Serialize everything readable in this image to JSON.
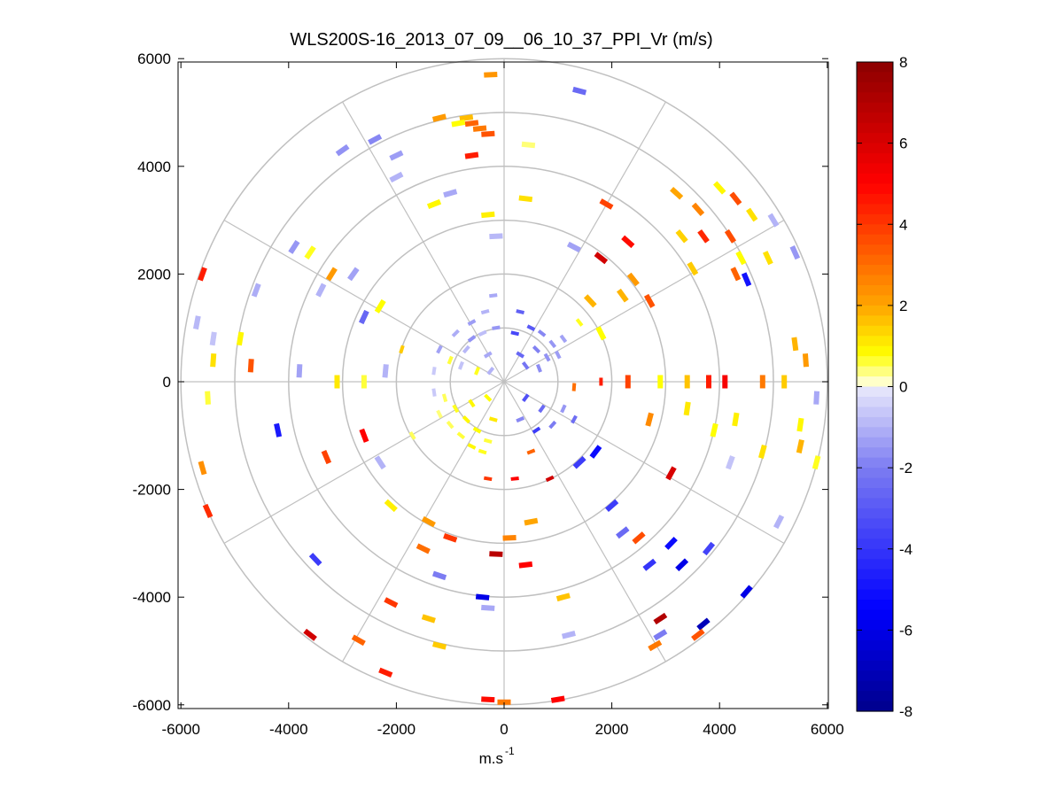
{
  "chart_data": {
    "type": "heatmap",
    "subtype": "polar-ppi",
    "title": "WLS200S-16_2013_07_09__06_10_37_PPI_Vr (m/s)",
    "xlabel_base": "m.s",
    "xlabel_exp": "-1",
    "ylabel": "",
    "xlim": [
      -6000,
      6000
    ],
    "ylim": [
      -6000,
      6000
    ],
    "xticks": [
      -6000,
      -4000,
      -2000,
      0,
      2000,
      4000,
      6000
    ],
    "yticks": [
      -6000,
      -4000,
      -2000,
      0,
      2000,
      4000,
      6000
    ],
    "xtick_labels": [
      "-6000",
      "-4000",
      "-2000",
      "0",
      "2000",
      "4000",
      "6000"
    ],
    "ytick_labels": [
      "6000",
      "4000",
      "2000",
      "0",
      "-2000",
      "-4000",
      "-6000"
    ],
    "range_rings": [
      1000,
      2000,
      3000,
      4000,
      5000,
      6000
    ],
    "spokes_deg": [
      0,
      30,
      60,
      90,
      120,
      150,
      180,
      210,
      240,
      270,
      300,
      330
    ],
    "colorbar": {
      "min": -8,
      "max": 8,
      "ticks": [
        8,
        6,
        4,
        2,
        0,
        -2,
        -4,
        -6,
        -8
      ],
      "tick_labels": [
        "8",
        "6",
        "4",
        "2",
        "0",
        "-2",
        "-4",
        "-6",
        "-8"
      ],
      "stops": [
        {
          "v": -8,
          "color": "#00008b"
        },
        {
          "v": -5.5,
          "color": "#0000ff"
        },
        {
          "v": -2,
          "color": "#7c7cf2"
        },
        {
          "v": -0.1,
          "color": "#e4e4fb"
        },
        {
          "v": 0.1,
          "color": "#ffffd0"
        },
        {
          "v": 0.8,
          "color": "#ffff00"
        },
        {
          "v": 2,
          "color": "#ffa500"
        },
        {
          "v": 5,
          "color": "#ff0000"
        },
        {
          "v": 8,
          "color": "#8b0000"
        }
      ]
    },
    "cells": [
      {
        "x": -200,
        "y": 1600,
        "v": -1.2
      },
      {
        "x": -350,
        "y": 1300,
        "v": -1.0
      },
      {
        "x": -600,
        "y": 1100,
        "v": -1.4
      },
      {
        "x": -900,
        "y": 900,
        "v": -1.1
      },
      {
        "x": -400,
        "y": 900,
        "v": -0.8
      },
      {
        "x": -150,
        "y": 1000,
        "v": -1.5
      },
      {
        "x": -700,
        "y": 600,
        "v": -0.9
      },
      {
        "x": -300,
        "y": 500,
        "v": -1.2
      },
      {
        "x": -1000,
        "y": 400,
        "v": 0.6
      },
      {
        "x": -800,
        "y": 300,
        "v": -0.7
      },
      {
        "x": -500,
        "y": 200,
        "v": 0.7
      },
      {
        "x": -1200,
        "y": 600,
        "v": -1.3
      },
      {
        "x": -1300,
        "y": 200,
        "v": -0.6
      },
      {
        "x": -250,
        "y": 200,
        "v": -1.0
      },
      {
        "x": -600,
        "y": 800,
        "v": -1.6
      },
      {
        "x": 300,
        "y": 1300,
        "v": -2.8
      },
      {
        "x": 500,
        "y": 1000,
        "v": -3.0
      },
      {
        "x": 700,
        "y": 900,
        "v": -1.8
      },
      {
        "x": 900,
        "y": 700,
        "v": -1.5
      },
      {
        "x": 1100,
        "y": 800,
        "v": -1.3
      },
      {
        "x": 600,
        "y": 600,
        "v": -1.9
      },
      {
        "x": 300,
        "y": 500,
        "v": -2.6
      },
      {
        "x": 800,
        "y": 450,
        "v": -1.6
      },
      {
        "x": 1000,
        "y": 500,
        "v": -1.4
      },
      {
        "x": 400,
        "y": 300,
        "v": -2.2
      },
      {
        "x": 650,
        "y": 250,
        "v": -1.7
      },
      {
        "x": 200,
        "y": 900,
        "v": -3.5
      },
      {
        "x": 1400,
        "y": 1100,
        "v": 0.7
      },
      {
        "x": 1600,
        "y": 1500,
        "v": 1.8
      },
      {
        "x": -900,
        "y": -500,
        "v": 0.7
      },
      {
        "x": -700,
        "y": -700,
        "v": 0.9
      },
      {
        "x": -500,
        "y": -900,
        "v": 0.8
      },
      {
        "x": -300,
        "y": -1100,
        "v": 0.6
      },
      {
        "x": -1100,
        "y": -300,
        "v": 0.5
      },
      {
        "x": -600,
        "y": -400,
        "v": 0.9
      },
      {
        "x": -200,
        "y": -700,
        "v": 1.1
      },
      {
        "x": -400,
        "y": -1300,
        "v": 0.7
      },
      {
        "x": -800,
        "y": -1000,
        "v": 0.6
      },
      {
        "x": -1000,
        "y": -800,
        "v": 0.5
      },
      {
        "x": -300,
        "y": -300,
        "v": 0.8
      },
      {
        "x": -1300,
        "y": -200,
        "v": -0.6
      },
      {
        "x": -1200,
        "y": -600,
        "v": 0.4
      },
      {
        "x": -600,
        "y": -1200,
        "v": 0.9
      },
      {
        "x": 400,
        "y": -300,
        "v": -3.2
      },
      {
        "x": 700,
        "y": -500,
        "v": -2.5
      },
      {
        "x": 900,
        "y": -800,
        "v": -2.0
      },
      {
        "x": 600,
        "y": -900,
        "v": -3.8
      },
      {
        "x": 300,
        "y": -700,
        "v": -1.8
      },
      {
        "x": 1100,
        "y": -500,
        "v": -1.5
      },
      {
        "x": 1300,
        "y": -700,
        "v": -2.4
      },
      {
        "x": 500,
        "y": -1300,
        "v": 3.2
      },
      {
        "x": 200,
        "y": -1800,
        "v": 5.0
      },
      {
        "x": -300,
        "y": -1800,
        "v": 4.0
      },
      {
        "x": 850,
        "y": -1800,
        "v": 6.2
      },
      {
        "x": 1400,
        "y": -1500,
        "v": -3.8
      },
      {
        "x": 1700,
        "y": -1300,
        "v": -5.2
      },
      {
        "x": 1800,
        "y": 0,
        "v": 4.5
      },
      {
        "x": 1300,
        "y": -100,
        "v": 3.0
      },
      {
        "x": -1700,
        "y": -1000,
        "v": 0.5
      },
      {
        "x": -250,
        "y": 5700,
        "v": 2.3
      },
      {
        "x": -600,
        "y": 4800,
        "v": 3.2
      },
      {
        "x": -450,
        "y": 4700,
        "v": 2.8
      },
      {
        "x": -300,
        "y": 4600,
        "v": 3.5
      },
      {
        "x": -700,
        "y": 4900,
        "v": 1.7
      },
      {
        "x": -1200,
        "y": 4900,
        "v": 2.2
      },
      {
        "x": -850,
        "y": 4800,
        "v": 0.8
      },
      {
        "x": -600,
        "y": 4200,
        "v": 4.5
      },
      {
        "x": 450,
        "y": 4400,
        "v": 0.4
      },
      {
        "x": 1400,
        "y": 5400,
        "v": -2.5
      },
      {
        "x": -1000,
        "y": 3500,
        "v": -1.2
      },
      {
        "x": -1300,
        "y": 3300,
        "v": 0.9
      },
      {
        "x": -2000,
        "y": 3800,
        "v": -1.0
      },
      {
        "x": -2400,
        "y": 4500,
        "v": -1.8
      },
      {
        "x": -3000,
        "y": 4300,
        "v": -1.6
      },
      {
        "x": -2000,
        "y": 4200,
        "v": -1.4
      },
      {
        "x": -300,
        "y": 3100,
        "v": 1.0
      },
      {
        "x": 400,
        "y": 3400,
        "v": 1.2
      },
      {
        "x": -150,
        "y": 2700,
        "v": -0.9
      },
      {
        "x": -3900,
        "y": 2500,
        "v": -1.5
      },
      {
        "x": -3600,
        "y": 2400,
        "v": 0.7
      },
      {
        "x": -3200,
        "y": 2000,
        "v": 2.2
      },
      {
        "x": -2800,
        "y": 2000,
        "v": -1.3
      },
      {
        "x": -3400,
        "y": 1700,
        "v": -1.0
      },
      {
        "x": -2300,
        "y": 1400,
        "v": 0.8
      },
      {
        "x": -2600,
        "y": 1200,
        "v": -2.6
      },
      {
        "x": -4600,
        "y": 1700,
        "v": -1.1
      },
      {
        "x": -5600,
        "y": 2000,
        "v": 4.5
      },
      {
        "x": -5700,
        "y": 1100,
        "v": -0.9
      },
      {
        "x": -5400,
        "y": 800,
        "v": -0.7
      },
      {
        "x": -4900,
        "y": 800,
        "v": 0.9
      },
      {
        "x": -4700,
        "y": 300,
        "v": 3.5
      },
      {
        "x": -5400,
        "y": 400,
        "v": 1.2
      },
      {
        "x": -3100,
        "y": 0,
        "v": 1.1
      },
      {
        "x": -3800,
        "y": 200,
        "v": -1.3
      },
      {
        "x": -2600,
        "y": 0,
        "v": 0.6
      },
      {
        "x": -2200,
        "y": 200,
        "v": -1.0
      },
      {
        "x": -1900,
        "y": 600,
        "v": 1.5
      },
      {
        "x": -5500,
        "y": -300,
        "v": 0.6
      },
      {
        "x": -4200,
        "y": -900,
        "v": -4.8
      },
      {
        "x": -3300,
        "y": -1400,
        "v": 3.8
      },
      {
        "x": -2600,
        "y": -1000,
        "v": 5.0
      },
      {
        "x": -2300,
        "y": -1500,
        "v": -1.0
      },
      {
        "x": -5600,
        "y": -1600,
        "v": 2.4
      },
      {
        "x": -5500,
        "y": -2400,
        "v": 4.2
      },
      {
        "x": -3500,
        "y": -3300,
        "v": -3.8
      },
      {
        "x": -2100,
        "y": -2300,
        "v": 1.0
      },
      {
        "x": -1400,
        "y": -2600,
        "v": 2.2
      },
      {
        "x": -1200,
        "y": -3600,
        "v": -2.0
      },
      {
        "x": -2100,
        "y": -4100,
        "v": 4.0
      },
      {
        "x": -1400,
        "y": -4400,
        "v": 1.6
      },
      {
        "x": -3600,
        "y": -4700,
        "v": 6.2
      },
      {
        "x": -2700,
        "y": -4800,
        "v": 3.2
      },
      {
        "x": -2200,
        "y": -5400,
        "v": 4.5
      },
      {
        "x": -1200,
        "y": -4900,
        "v": 1.5
      },
      {
        "x": -400,
        "y": -4000,
        "v": -6.0
      },
      {
        "x": -300,
        "y": -4200,
        "v": -1.2
      },
      {
        "x": -300,
        "y": -5900,
        "v": 4.8
      },
      {
        "x": 0,
        "y": -5950,
        "v": 2.8
      },
      {
        "x": 1000,
        "y": -5900,
        "v": 5.0
      },
      {
        "x": 100,
        "y": -2900,
        "v": 2.6
      },
      {
        "x": -150,
        "y": -3200,
        "v": 6.8
      },
      {
        "x": 400,
        "y": -3400,
        "v": 5.0
      },
      {
        "x": -1000,
        "y": -2900,
        "v": 4.0
      },
      {
        "x": -1500,
        "y": -3100,
        "v": 3.0
      },
      {
        "x": 500,
        "y": -2600,
        "v": 2.0
      },
      {
        "x": 1100,
        "y": -4000,
        "v": 1.6
      },
      {
        "x": 1200,
        "y": -4700,
        "v": -1.0
      },
      {
        "x": 4000,
        "y": 3600,
        "v": 0.9
      },
      {
        "x": 4300,
        "y": 3400,
        "v": 3.6
      },
      {
        "x": 4600,
        "y": 3100,
        "v": 1.2
      },
      {
        "x": 5000,
        "y": 3000,
        "v": -1.0
      },
      {
        "x": 5400,
        "y": 2400,
        "v": -1.5
      },
      {
        "x": 4900,
        "y": 2300,
        "v": 1.2
      },
      {
        "x": 3600,
        "y": 3200,
        "v": 2.6
      },
      {
        "x": 3300,
        "y": 2700,
        "v": 1.4
      },
      {
        "x": 3700,
        "y": 2700,
        "v": 4.3
      },
      {
        "x": 4200,
        "y": 2700,
        "v": 3.6
      },
      {
        "x": 4400,
        "y": 2300,
        "v": 0.8
      },
      {
        "x": 3200,
        "y": 3500,
        "v": 2.0
      },
      {
        "x": 2400,
        "y": 1900,
        "v": 2.2
      },
      {
        "x": 2700,
        "y": 1500,
        "v": 3.5
      },
      {
        "x": 2200,
        "y": 1600,
        "v": 1.8
      },
      {
        "x": 1800,
        "y": 2300,
        "v": 6.2
      },
      {
        "x": 2300,
        "y": 2600,
        "v": 4.8
      },
      {
        "x": 1900,
        "y": 3300,
        "v": 3.8
      },
      {
        "x": 4300,
        "y": 2000,
        "v": 3.2
      },
      {
        "x": 4500,
        "y": 1900,
        "v": -5.0
      },
      {
        "x": 3500,
        "y": 2100,
        "v": 1.5
      },
      {
        "x": 1300,
        "y": 2500,
        "v": -1.3
      },
      {
        "x": 1800,
        "y": 900,
        "v": 0.8
      },
      {
        "x": 5400,
        "y": 700,
        "v": 1.8
      },
      {
        "x": 5600,
        "y": 400,
        "v": 2.2
      },
      {
        "x": 5200,
        "y": 0,
        "v": 1.5
      },
      {
        "x": 4100,
        "y": 0,
        "v": 5.2
      },
      {
        "x": 3800,
        "y": 0,
        "v": 4.5
      },
      {
        "x": 4800,
        "y": 0,
        "v": 2.8
      },
      {
        "x": 3400,
        "y": 0,
        "v": 1.6
      },
      {
        "x": 2900,
        "y": 0,
        "v": 0.8
      },
      {
        "x": 2300,
        "y": 0,
        "v": 3.8
      },
      {
        "x": 5800,
        "y": -300,
        "v": -1.2
      },
      {
        "x": 5500,
        "y": -800,
        "v": 0.9
      },
      {
        "x": 5500,
        "y": -1200,
        "v": 1.8
      },
      {
        "x": 5800,
        "y": -1500,
        "v": 0.7
      },
      {
        "x": 4800,
        "y": -1300,
        "v": 1.2
      },
      {
        "x": 4200,
        "y": -1500,
        "v": -0.7
      },
      {
        "x": 4300,
        "y": -700,
        "v": 1.0
      },
      {
        "x": 3900,
        "y": -900,
        "v": 0.8
      },
      {
        "x": 3100,
        "y": -1700,
        "v": 6.0
      },
      {
        "x": 2700,
        "y": -700,
        "v": 2.5
      },
      {
        "x": 3400,
        "y": -500,
        "v": 1.1
      },
      {
        "x": 5100,
        "y": -2600,
        "v": -1.0
      },
      {
        "x": 3800,
        "y": -3100,
        "v": -3.6
      },
      {
        "x": 3100,
        "y": -3000,
        "v": -5.2
      },
      {
        "x": 3300,
        "y": -3400,
        "v": -6.0
      },
      {
        "x": 2700,
        "y": -3400,
        "v": -4.0
      },
      {
        "x": 2500,
        "y": -2900,
        "v": 3.6
      },
      {
        "x": 2000,
        "y": -2300,
        "v": -3.8
      },
      {
        "x": 2200,
        "y": -2800,
        "v": -2.5
      },
      {
        "x": 3700,
        "y": -4500,
        "v": -7.0
      },
      {
        "x": 2900,
        "y": -4400,
        "v": 7.0
      },
      {
        "x": 3600,
        "y": -4700,
        "v": 3.5
      },
      {
        "x": 2800,
        "y": -4900,
        "v": 2.8
      },
      {
        "x": 4500,
        "y": -3900,
        "v": -6.0
      },
      {
        "x": 2900,
        "y": -4700,
        "v": -2.0
      }
    ]
  }
}
